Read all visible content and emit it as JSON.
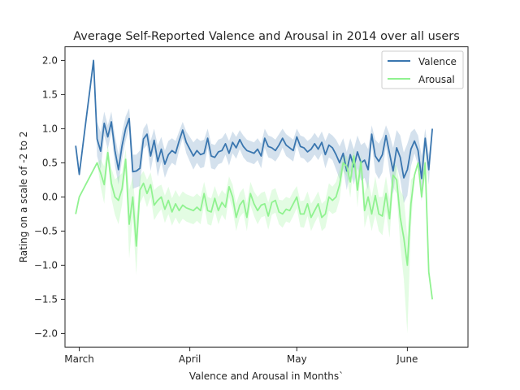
{
  "chart_data": {
    "type": "line",
    "title": "Average Self-Reported Valence and Arousal in 2014 over all users",
    "xlabel": "Valence and Arousal in Months`",
    "ylabel": "Rating on a scale of -2 to 2",
    "xlim": [
      "2014-02-25",
      "2014-06-18"
    ],
    "ylim": [
      -2.2,
      2.2
    ],
    "xticks": [
      {
        "date": "2014-03-01",
        "label": "March"
      },
      {
        "date": "2014-04-01",
        "label": "April"
      },
      {
        "date": "2014-05-01",
        "label": "May"
      },
      {
        "date": "2014-06-01",
        "label": "June"
      }
    ],
    "yticks": [
      {
        "value": 2.0,
        "label": "2.0"
      },
      {
        "value": 1.5,
        "label": "1.5"
      },
      {
        "value": 1.0,
        "label": "1.0"
      },
      {
        "value": 0.5,
        "label": "0.5"
      },
      {
        "value": 0.0,
        "label": "0.0"
      },
      {
        "value": -0.5,
        "label": "−0.5"
      },
      {
        "value": -1.0,
        "label": "−1.0"
      },
      {
        "value": -1.5,
        "label": "−1.5"
      },
      {
        "value": -2.0,
        "label": "−2.0"
      }
    ],
    "grid": false,
    "legend_position": "top-right",
    "x": [
      "2014-02-28",
      "2014-03-01",
      "2014-03-02",
      "2014-03-03",
      "2014-03-04",
      "2014-03-05",
      "2014-03-06",
      "2014-03-07",
      "2014-03-08",
      "2014-03-09",
      "2014-03-10",
      "2014-03-11",
      "2014-03-12",
      "2014-03-13",
      "2014-03-14",
      "2014-03-15",
      "2014-03-16",
      "2014-03-17",
      "2014-03-18",
      "2014-03-19",
      "2014-03-20",
      "2014-03-21",
      "2014-03-22",
      "2014-03-23",
      "2014-03-24",
      "2014-03-25",
      "2014-03-26",
      "2014-03-27",
      "2014-03-28",
      "2014-03-29",
      "2014-03-30",
      "2014-03-31",
      "2014-04-01",
      "2014-04-02",
      "2014-04-03",
      "2014-04-04",
      "2014-04-05",
      "2014-04-06",
      "2014-04-07",
      "2014-04-08",
      "2014-04-09",
      "2014-04-10",
      "2014-04-11",
      "2014-04-12",
      "2014-04-13",
      "2014-04-14",
      "2014-04-15",
      "2014-04-16",
      "2014-04-17",
      "2014-04-18",
      "2014-04-19",
      "2014-04-20",
      "2014-04-21",
      "2014-04-22",
      "2014-04-23",
      "2014-04-24",
      "2014-04-25",
      "2014-04-26",
      "2014-04-27",
      "2014-04-28",
      "2014-04-29",
      "2014-04-30",
      "2014-05-01",
      "2014-05-02",
      "2014-05-03",
      "2014-05-04",
      "2014-05-05",
      "2014-05-06",
      "2014-05-07",
      "2014-05-08",
      "2014-05-09",
      "2014-05-10",
      "2014-05-11",
      "2014-05-12",
      "2014-05-13",
      "2014-05-14",
      "2014-05-15",
      "2014-05-16",
      "2014-05-17",
      "2014-05-18",
      "2014-05-19",
      "2014-05-20",
      "2014-05-21",
      "2014-05-22",
      "2014-05-23",
      "2014-05-24",
      "2014-05-25",
      "2014-05-26",
      "2014-05-27",
      "2014-05-28",
      "2014-05-29",
      "2014-05-30",
      "2014-05-31",
      "2014-06-01",
      "2014-06-02",
      "2014-06-03",
      "2014-06-04",
      "2014-06-05",
      "2014-06-06",
      "2014-06-07",
      "2014-06-08"
    ],
    "series": [
      {
        "name": "Valence",
        "color": "#3a76af",
        "band_color": "#3a76af",
        "values": [
          0.75,
          0.33,
          0.75,
          1.17,
          1.58,
          2.0,
          0.85,
          0.67,
          1.08,
          0.88,
          1.1,
          0.68,
          0.4,
          0.75,
          1.0,
          1.15,
          0.37,
          0.38,
          0.42,
          0.85,
          0.92,
          0.6,
          0.83,
          0.52,
          0.7,
          0.48,
          0.62,
          0.68,
          0.64,
          0.82,
          0.98,
          0.8,
          0.7,
          0.6,
          0.68,
          0.62,
          0.64,
          0.86,
          0.6,
          0.58,
          0.66,
          0.68,
          0.78,
          0.64,
          0.8,
          0.72,
          0.84,
          0.74,
          0.68,
          0.66,
          0.64,
          0.7,
          0.6,
          0.86,
          0.74,
          0.72,
          0.68,
          0.76,
          0.86,
          0.76,
          0.72,
          0.68,
          0.88,
          0.74,
          0.72,
          0.66,
          0.7,
          0.78,
          0.7,
          0.8,
          0.62,
          0.76,
          0.72,
          0.62,
          0.5,
          0.64,
          0.38,
          0.62,
          0.44,
          0.66,
          0.5,
          0.54,
          0.4,
          0.92,
          0.6,
          0.52,
          0.62,
          0.9,
          0.64,
          0.38,
          0.72,
          0.58,
          0.28,
          0.4,
          0.7,
          0.82,
          0.68,
          0.27,
          0.86,
          0.4,
          1.0
        ],
        "upper": [
          0.75,
          0.33,
          0.75,
          1.17,
          1.58,
          2.0,
          1.1,
          0.95,
          1.25,
          1.05,
          1.25,
          0.9,
          0.62,
          0.95,
          1.18,
          1.3,
          0.62,
          0.62,
          0.68,
          1.0,
          1.08,
          0.82,
          1.0,
          0.75,
          0.88,
          0.68,
          0.82,
          0.86,
          0.82,
          0.96,
          1.1,
          0.96,
          0.88,
          0.8,
          0.86,
          0.82,
          0.84,
          1.0,
          0.78,
          0.76,
          0.84,
          0.86,
          0.94,
          0.82,
          0.96,
          0.88,
          0.98,
          0.9,
          0.84,
          0.82,
          0.8,
          0.86,
          0.78,
          1.0,
          0.9,
          0.88,
          0.84,
          0.92,
          1.0,
          0.92,
          0.88,
          0.84,
          1.0,
          0.9,
          0.88,
          0.82,
          0.86,
          0.94,
          0.86,
          0.96,
          0.82,
          0.94,
          0.9,
          0.84,
          0.74,
          0.86,
          0.66,
          0.86,
          0.7,
          0.9,
          0.76,
          0.8,
          0.7,
          1.05,
          0.84,
          0.78,
          0.88,
          1.05,
          0.92,
          0.72,
          0.98,
          0.9,
          0.65,
          0.78,
          0.95,
          1.0,
          0.9,
          0.6,
          1.0,
          0.62,
          1.0
        ],
        "lower": [
          0.75,
          0.33,
          0.75,
          1.17,
          1.58,
          2.0,
          0.6,
          0.4,
          0.9,
          0.7,
          0.95,
          0.46,
          0.18,
          0.55,
          0.82,
          1.0,
          0.12,
          0.14,
          0.16,
          0.7,
          0.76,
          0.38,
          0.66,
          0.3,
          0.52,
          0.28,
          0.42,
          0.5,
          0.46,
          0.68,
          0.86,
          0.64,
          0.52,
          0.4,
          0.5,
          0.42,
          0.44,
          0.72,
          0.42,
          0.4,
          0.48,
          0.5,
          0.62,
          0.46,
          0.64,
          0.56,
          0.7,
          0.58,
          0.52,
          0.5,
          0.48,
          0.54,
          0.42,
          0.72,
          0.58,
          0.56,
          0.52,
          0.6,
          0.72,
          0.6,
          0.56,
          0.52,
          0.76,
          0.58,
          0.56,
          0.5,
          0.54,
          0.62,
          0.54,
          0.64,
          0.42,
          0.58,
          0.54,
          0.4,
          0.26,
          0.42,
          0.1,
          0.38,
          0.18,
          0.42,
          0.24,
          0.28,
          0.1,
          0.79,
          0.36,
          0.26,
          0.36,
          0.75,
          0.36,
          0.04,
          0.46,
          0.26,
          -0.09,
          0.02,
          0.45,
          0.64,
          0.46,
          -0.06,
          0.72,
          0.18,
          1.0
        ]
      },
      {
        "name": "Arousal",
        "color": "#90f290",
        "band_color": "#90f290",
        "values": [
          -0.25,
          0.0,
          0.1,
          0.2,
          0.3,
          0.4,
          0.5,
          0.35,
          0.18,
          0.65,
          0.2,
          0.0,
          -0.05,
          0.12,
          0.55,
          -0.4,
          0.0,
          -0.72,
          0.1,
          0.2,
          0.05,
          0.18,
          -0.12,
          -0.05,
          0.0,
          -0.18,
          -0.05,
          -0.22,
          -0.1,
          -0.2,
          -0.12,
          -0.16,
          -0.18,
          -0.2,
          -0.15,
          -0.2,
          0.05,
          -0.2,
          -0.22,
          -0.02,
          -0.2,
          -0.08,
          -0.15,
          0.15,
          0.0,
          -0.3,
          -0.12,
          -0.05,
          -0.3,
          0.05,
          -0.1,
          -0.2,
          -0.12,
          -0.1,
          -0.28,
          -0.08,
          -0.05,
          -0.22,
          -0.25,
          -0.18,
          -0.2,
          -0.1,
          0.0,
          -0.25,
          -0.25,
          -0.1,
          -0.3,
          -0.2,
          -0.1,
          -0.3,
          -0.25,
          0.0,
          -0.05,
          0.0,
          0.18,
          0.5,
          0.45,
          0.22,
          0.6,
          0.1,
          0.52,
          -0.2,
          0.0,
          -0.25,
          0.02,
          -0.25,
          -0.28,
          0.05,
          -0.32,
          0.32,
          0.25,
          -0.3,
          -0.6,
          -1.0,
          -0.1,
          0.32,
          0.5,
          0.0,
          0.5,
          -1.1,
          -1.5
        ],
        "upper": [
          -0.25,
          0.0,
          0.1,
          0.2,
          0.3,
          0.4,
          0.5,
          0.55,
          0.45,
          0.75,
          0.42,
          0.26,
          0.3,
          0.35,
          0.7,
          0.1,
          0.3,
          -0.3,
          0.3,
          0.38,
          0.25,
          0.36,
          0.1,
          0.15,
          0.18,
          0.02,
          0.15,
          -0.02,
          0.1,
          0.0,
          0.08,
          0.04,
          0.02,
          0.0,
          0.05,
          0.0,
          0.22,
          0.0,
          -0.02,
          0.16,
          0.0,
          0.1,
          0.04,
          0.3,
          0.18,
          -0.1,
          0.06,
          0.13,
          -0.1,
          0.22,
          0.08,
          0.0,
          0.06,
          0.08,
          -0.08,
          0.1,
          0.13,
          -0.04,
          -0.05,
          0.0,
          -0.02,
          0.08,
          0.16,
          -0.06,
          -0.05,
          0.08,
          -0.1,
          -0.02,
          0.08,
          -0.1,
          -0.05,
          0.2,
          0.15,
          0.22,
          0.4,
          0.62,
          0.6,
          0.45,
          0.7,
          0.35,
          0.62,
          0.05,
          0.25,
          0.0,
          0.3,
          0.0,
          0.0,
          0.3,
          -0.04,
          0.5,
          0.45,
          0.1,
          0.0,
          -0.6,
          0.25,
          0.32,
          0.5,
          0.0,
          0.7,
          -1.1,
          -1.5
        ],
        "lower": [
          -0.25,
          0.0,
          0.1,
          0.2,
          0.3,
          0.4,
          0.5,
          0.15,
          -0.1,
          0.55,
          -0.02,
          -0.26,
          -0.4,
          -0.11,
          0.4,
          -0.9,
          -0.3,
          -1.14,
          -0.1,
          0.02,
          -0.15,
          0.0,
          -0.34,
          -0.25,
          -0.18,
          -0.38,
          -0.25,
          -0.42,
          -0.3,
          -0.4,
          -0.32,
          -0.36,
          -0.38,
          -0.4,
          -0.35,
          -0.4,
          -0.12,
          -0.4,
          -0.42,
          -0.2,
          -0.4,
          -0.26,
          -0.34,
          0.0,
          -0.18,
          -0.5,
          -0.3,
          -0.23,
          -0.5,
          -0.12,
          -0.28,
          -0.4,
          -0.3,
          -0.28,
          -0.48,
          -0.26,
          -0.23,
          -0.4,
          -0.45,
          -0.36,
          -0.38,
          -0.28,
          -0.16,
          -0.44,
          -0.45,
          -0.28,
          -0.5,
          -0.38,
          -0.28,
          -0.5,
          -0.45,
          -0.2,
          -0.25,
          -0.22,
          -0.04,
          0.38,
          0.3,
          -0.01,
          0.5,
          -0.15,
          0.42,
          -0.45,
          -0.25,
          -0.5,
          -0.26,
          -0.5,
          -0.56,
          -0.2,
          -0.6,
          0.14,
          0.05,
          -0.7,
          -1.2,
          -2.0,
          -0.45,
          0.32,
          0.5,
          0.0,
          0.3,
          -1.1,
          -1.5
        ]
      }
    ]
  }
}
